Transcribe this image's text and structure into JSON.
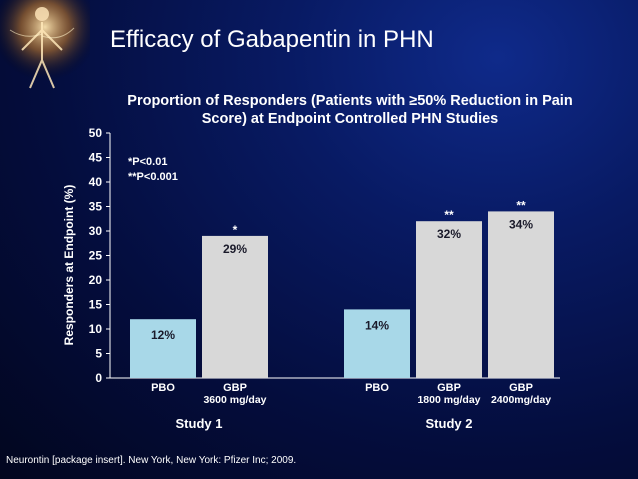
{
  "slide": {
    "title": "Efficacy of Gabapentin in PHN",
    "footnote": "Neurontin [package insert]. New York, New York: Pfizer Inc; 2009."
  },
  "chart_data": {
    "type": "bar",
    "title": "Proportion of Responders (Patients with ≥50% Reduction in Pain Score) at Endpoint Controlled PHN Studies",
    "ylabel": "Responders at Endpoint (%)",
    "ylim": [
      0,
      50
    ],
    "yticks": [
      0,
      5,
      10,
      15,
      20,
      25,
      30,
      35,
      40,
      45,
      50
    ],
    "grid": false,
    "legend_notes": [
      "*P<0.01",
      "**P<0.001"
    ],
    "groups": [
      {
        "name": "Study 1",
        "bars": [
          {
            "label": "PBO",
            "sublabel": "",
            "value": 12,
            "value_label": "12%",
            "sig": "",
            "color": "#a8d8e8"
          },
          {
            "label": "GBP",
            "sublabel": "3600 mg/day",
            "value": 29,
            "value_label": "29%",
            "sig": "*",
            "color": "#d8d8d8"
          }
        ]
      },
      {
        "name": "Study 2",
        "bars": [
          {
            "label": "PBO",
            "sublabel": "",
            "value": 14,
            "value_label": "14%",
            "sig": "",
            "color": "#a8d8e8"
          },
          {
            "label": "GBP",
            "sublabel": "1800 mg/day",
            "value": 32,
            "value_label": "32%",
            "sig": "**",
            "color": "#d8d8d8"
          },
          {
            "label": "GBP",
            "sublabel": "2400mg/day",
            "value": 34,
            "value_label": "34%",
            "sig": "**",
            "color": "#d8d8d8"
          }
        ]
      }
    ]
  }
}
